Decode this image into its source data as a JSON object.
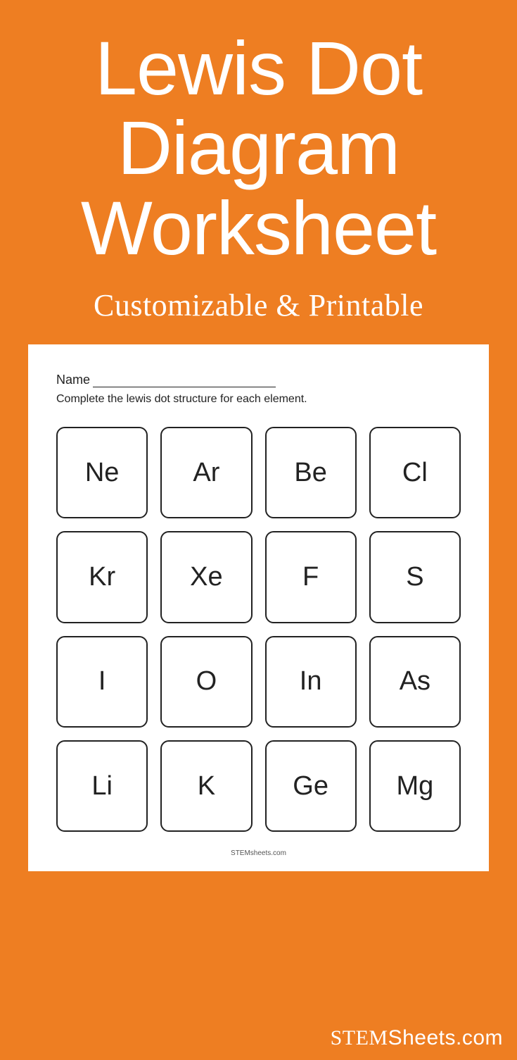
{
  "colors": {
    "background": "#ee7e22",
    "sheet_bg": "#ffffff",
    "text_light": "#ffffff",
    "text_dark": "#222222",
    "cell_border": "#222222"
  },
  "header": {
    "title_line1": "Lewis Dot",
    "title_line2": "Diagram",
    "title_line3": "Worksheet",
    "subtitle": "Customizable & Printable",
    "title_fontsize": 108,
    "subtitle_fontsize": 44
  },
  "sheet": {
    "name_label": "Name",
    "instruction": "Complete the lewis dot structure for each element.",
    "footer": "STEMsheets.com",
    "grid": {
      "columns": 4,
      "rows": 4,
      "cell_border_radius": 12,
      "cell_border_width": 2,
      "cell_fontsize": 38,
      "elements": [
        "Ne",
        "Ar",
        "Be",
        "Cl",
        "Kr",
        "Xe",
        "F",
        "S",
        "I",
        "O",
        "In",
        "As",
        "Li",
        "K",
        "Ge",
        "Mg"
      ]
    }
  },
  "brand": {
    "bold": "STEM",
    "light": "Sheets",
    "tld": ".com"
  }
}
